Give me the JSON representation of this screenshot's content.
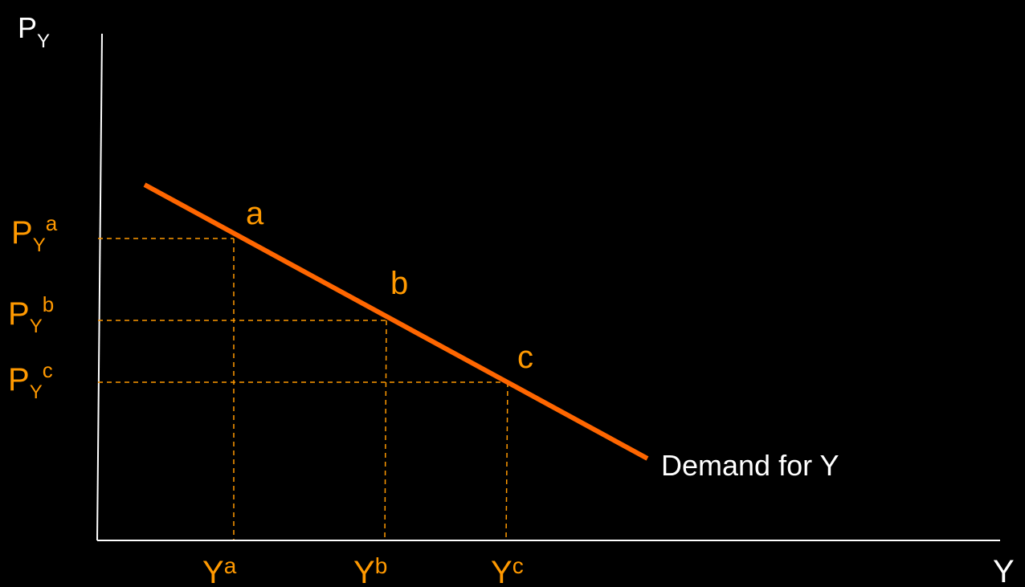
{
  "colors": {
    "background": "#000000",
    "axis": "#ffffff",
    "curve": "#ff6600",
    "label": "#ff9900",
    "guide": "#ff9900",
    "curve_label": "#ffffff"
  },
  "axes": {
    "y_label": "P",
    "y_label_sub": "Y",
    "x_label": "Y"
  },
  "curve": {
    "label": "Demand for Y"
  },
  "points": [
    {
      "name": "a",
      "price_label": "P",
      "price_sub": "Y",
      "price_sup": "a",
      "quantity_label": "Y",
      "quantity_sup": "a"
    },
    {
      "name": "b",
      "price_label": "P",
      "price_sub": "Y",
      "price_sup": "b",
      "quantity_label": "Y",
      "quantity_sup": "b"
    },
    {
      "name": "c",
      "price_label": "P",
      "price_sub": "Y",
      "price_sup": "c",
      "quantity_label": "Y",
      "quantity_sup": "c"
    }
  ]
}
